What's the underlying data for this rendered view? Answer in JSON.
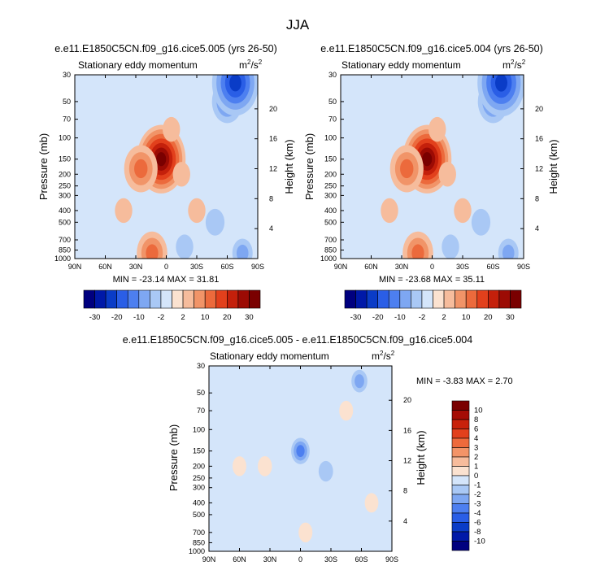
{
  "figure_title": "JJA",
  "chart_data": [
    {
      "type": "heatmap",
      "id": "left",
      "title": "e.e11.E1850C5CN.f09_g16.cice5.005 (yrs 26-50)",
      "subtitle": "Stationary eddy momentum",
      "units": "m2/s2",
      "units_base": "m",
      "units_sup1": "2",
      "units_mid": "/s",
      "units_sup2": "2",
      "xlabel": "",
      "ylabel": "Pressure (mb)",
      "ylabel_right": "Height (km)",
      "x_range": [
        90,
        -90
      ],
      "ylim": [
        1000,
        30
      ],
      "x_ticks": [
        {
          "v": 90,
          "label": "90N"
        },
        {
          "v": 60,
          "label": "60N"
        },
        {
          "v": 30,
          "label": "30N"
        },
        {
          "v": 0,
          "label": "0"
        },
        {
          "v": -30,
          "label": "30S"
        },
        {
          "v": -60,
          "label": "60S"
        },
        {
          "v": -90,
          "label": "90S"
        }
      ],
      "y_ticks": [
        30,
        50,
        70,
        100,
        150,
        200,
        250,
        300,
        400,
        500,
        700,
        850,
        1000
      ],
      "height_ticks": [
        4,
        8,
        12,
        16,
        20
      ],
      "stats": "MIN = -23.14  MAX = 31.81",
      "min": -23.14,
      "max": 31.81,
      "features": [
        {
          "lat": 5,
          "p": 150,
          "value": 31.8
        },
        {
          "lat": 25,
          "p": 180,
          "value": 14
        },
        {
          "lat": -5,
          "p": 85,
          "value": 3
        },
        {
          "lat": 14,
          "p": 900,
          "value": 12
        },
        {
          "lat": 42,
          "p": 400,
          "value": 3
        },
        {
          "lat": -30,
          "p": 400,
          "value": 3
        },
        {
          "lat": -15,
          "p": 200,
          "value": 3
        },
        {
          "lat": -18,
          "p": 800,
          "value": -3
        },
        {
          "lat": -48,
          "p": 500,
          "value": -4
        },
        {
          "lat": -60,
          "p": 50,
          "value": -12
        },
        {
          "lat": -68,
          "p": 35,
          "value": -23
        },
        {
          "lat": 55,
          "p": 700,
          "value": -1
        },
        {
          "lat": -75,
          "p": 900,
          "value": -5
        }
      ]
    },
    {
      "type": "heatmap",
      "id": "right",
      "title": "e.e11.E1850C5CN.f09_g16.cice5.004 (yrs 26-50)",
      "subtitle": "Stationary eddy momentum",
      "units": "m2/s2",
      "units_base": "m",
      "units_sup1": "2",
      "units_mid": "/s",
      "units_sup2": "2",
      "xlabel": "",
      "ylabel": "Pressure (mb)",
      "ylabel_right": "Height (km)",
      "x_range": [
        90,
        -90
      ],
      "ylim": [
        1000,
        30
      ],
      "x_ticks": [
        {
          "v": 90,
          "label": "90N"
        },
        {
          "v": 60,
          "label": "60N"
        },
        {
          "v": 30,
          "label": "30N"
        },
        {
          "v": 0,
          "label": "0"
        },
        {
          "v": -30,
          "label": "30S"
        },
        {
          "v": -60,
          "label": "60S"
        },
        {
          "v": -90,
          "label": "90S"
        }
      ],
      "y_ticks": [
        30,
        50,
        70,
        100,
        150,
        200,
        250,
        300,
        400,
        500,
        700,
        850,
        1000
      ],
      "height_ticks": [
        4,
        8,
        12,
        16,
        20
      ],
      "stats": "MIN = -23.68  MAX = 35.11",
      "min": -23.68,
      "max": 35.11,
      "features": [
        {
          "lat": 5,
          "p": 150,
          "value": 35.1
        },
        {
          "lat": 25,
          "p": 180,
          "value": 14
        },
        {
          "lat": -5,
          "p": 85,
          "value": 3
        },
        {
          "lat": 14,
          "p": 900,
          "value": 12
        },
        {
          "lat": 42,
          "p": 400,
          "value": 3
        },
        {
          "lat": -30,
          "p": 400,
          "value": 3
        },
        {
          "lat": -15,
          "p": 200,
          "value": 3
        },
        {
          "lat": -18,
          "p": 800,
          "value": -3
        },
        {
          "lat": -48,
          "p": 500,
          "value": -4
        },
        {
          "lat": -60,
          "p": 50,
          "value": -12
        },
        {
          "lat": -68,
          "p": 35,
          "value": -23.7
        },
        {
          "lat": 55,
          "p": 700,
          "value": -1
        },
        {
          "lat": -75,
          "p": 900,
          "value": -5
        }
      ]
    },
    {
      "type": "heatmap",
      "id": "diff",
      "title": "e.e11.E1850C5CN.f09_g16.cice5.005 - e.e11.E1850C5CN.f09_g16.cice5.004",
      "subtitle": "Stationary eddy momentum",
      "units": "m2/s2",
      "units_base": "m",
      "units_sup1": "2",
      "units_mid": "/s",
      "units_sup2": "2",
      "xlabel": "",
      "ylabel": "Pressure (mb)",
      "ylabel_right": "Height (km)",
      "x_range": [
        90,
        -90
      ],
      "ylim": [
        1000,
        30
      ],
      "x_ticks": [
        {
          "v": 90,
          "label": "90N"
        },
        {
          "v": 60,
          "label": "60N"
        },
        {
          "v": 30,
          "label": "30N"
        },
        {
          "v": 0,
          "label": "0"
        },
        {
          "v": -30,
          "label": "30S"
        },
        {
          "v": -60,
          "label": "60S"
        },
        {
          "v": -90,
          "label": "90S"
        }
      ],
      "y_ticks": [
        30,
        50,
        70,
        100,
        150,
        200,
        250,
        300,
        400,
        500,
        700,
        850,
        1000
      ],
      "height_ticks": [
        4,
        8,
        12,
        16,
        20
      ],
      "stats": "MIN =  -3.83  MAX =   2.70",
      "min": -3.83,
      "max": 2.7,
      "features": [
        {
          "lat": 0,
          "p": 150,
          "value": -3.8
        },
        {
          "lat": -25,
          "p": 220,
          "value": -1
        },
        {
          "lat": 35,
          "p": 200,
          "value": 0.8
        },
        {
          "lat": -58,
          "p": 40,
          "value": -2
        },
        {
          "lat": -45,
          "p": 70,
          "value": 0.6
        },
        {
          "lat": 10,
          "p": 400,
          "value": -0.6
        },
        {
          "lat": -5,
          "p": 700,
          "value": 0.6
        },
        {
          "lat": 60,
          "p": 200,
          "value": 0.6
        },
        {
          "lat": -70,
          "p": 400,
          "value": 0.5
        }
      ]
    }
  ],
  "colorbar_main": {
    "labels": [
      "-30",
      "-20",
      "-10",
      "-2",
      "2",
      "10",
      "20",
      "30"
    ],
    "colors": [
      "#00007f",
      "#0019a8",
      "#0a3cc7",
      "#2a5ee6",
      "#4d7ff0",
      "#7ea7f2",
      "#a9c8f5",
      "#d4e5fa",
      "#fbe2d0",
      "#f6bc9c",
      "#f19468",
      "#ec6a3c",
      "#e2401c",
      "#c4200b",
      "#9c0b04",
      "#7a0000"
    ]
  },
  "colorbar_diff": {
    "labels": [
      "10",
      "8",
      "6",
      "4",
      "3",
      "2",
      "1",
      "0",
      "-1",
      "-2",
      "-3",
      "-4",
      "-6",
      "-8",
      "-10"
    ],
    "colors": [
      "#7a0000",
      "#a50d05",
      "#c8220b",
      "#e2401c",
      "#ee6a3c",
      "#f39468",
      "#f7bc9c",
      "#fbe2d0",
      "#d4e5fa",
      "#a9c8f5",
      "#7ea7f2",
      "#4d7ff0",
      "#2a5ee6",
      "#0a3cc7",
      "#0019a8",
      "#00007f"
    ]
  }
}
